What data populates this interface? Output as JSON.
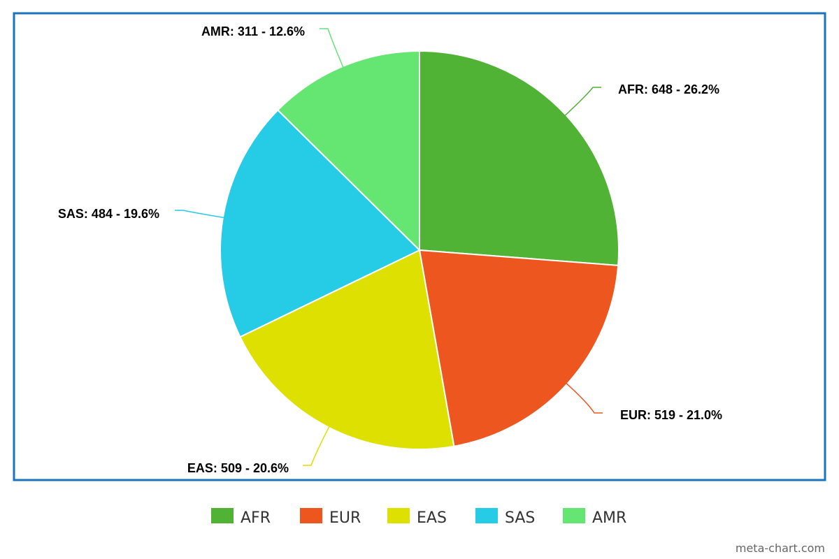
{
  "chart_data": {
    "type": "pie",
    "slices": [
      {
        "name": "AFR",
        "value": 648,
        "percent": 26.2,
        "label": "AFR: 648 - 26.2%",
        "color": "#51b335"
      },
      {
        "name": "EUR",
        "value": 519,
        "percent": 21.0,
        "label": "EUR: 519 - 21.0%",
        "color": "#ee561f"
      },
      {
        "name": "EAS",
        "value": 509,
        "percent": 20.6,
        "label": "EAS: 509 - 20.6%",
        "color": "#dde000"
      },
      {
        "name": "SAS",
        "value": 484,
        "percent": 19.6,
        "label": "SAS: 484 - 19.6%",
        "color": "#26cbe5"
      },
      {
        "name": "AMR",
        "value": 311,
        "percent": 12.6,
        "label": "AMR: 311 - 12.6%",
        "color": "#65e673"
      }
    ],
    "legend_position": "bottom",
    "frame_color": "#1a73bd"
  },
  "watermark": "meta-chart.com"
}
